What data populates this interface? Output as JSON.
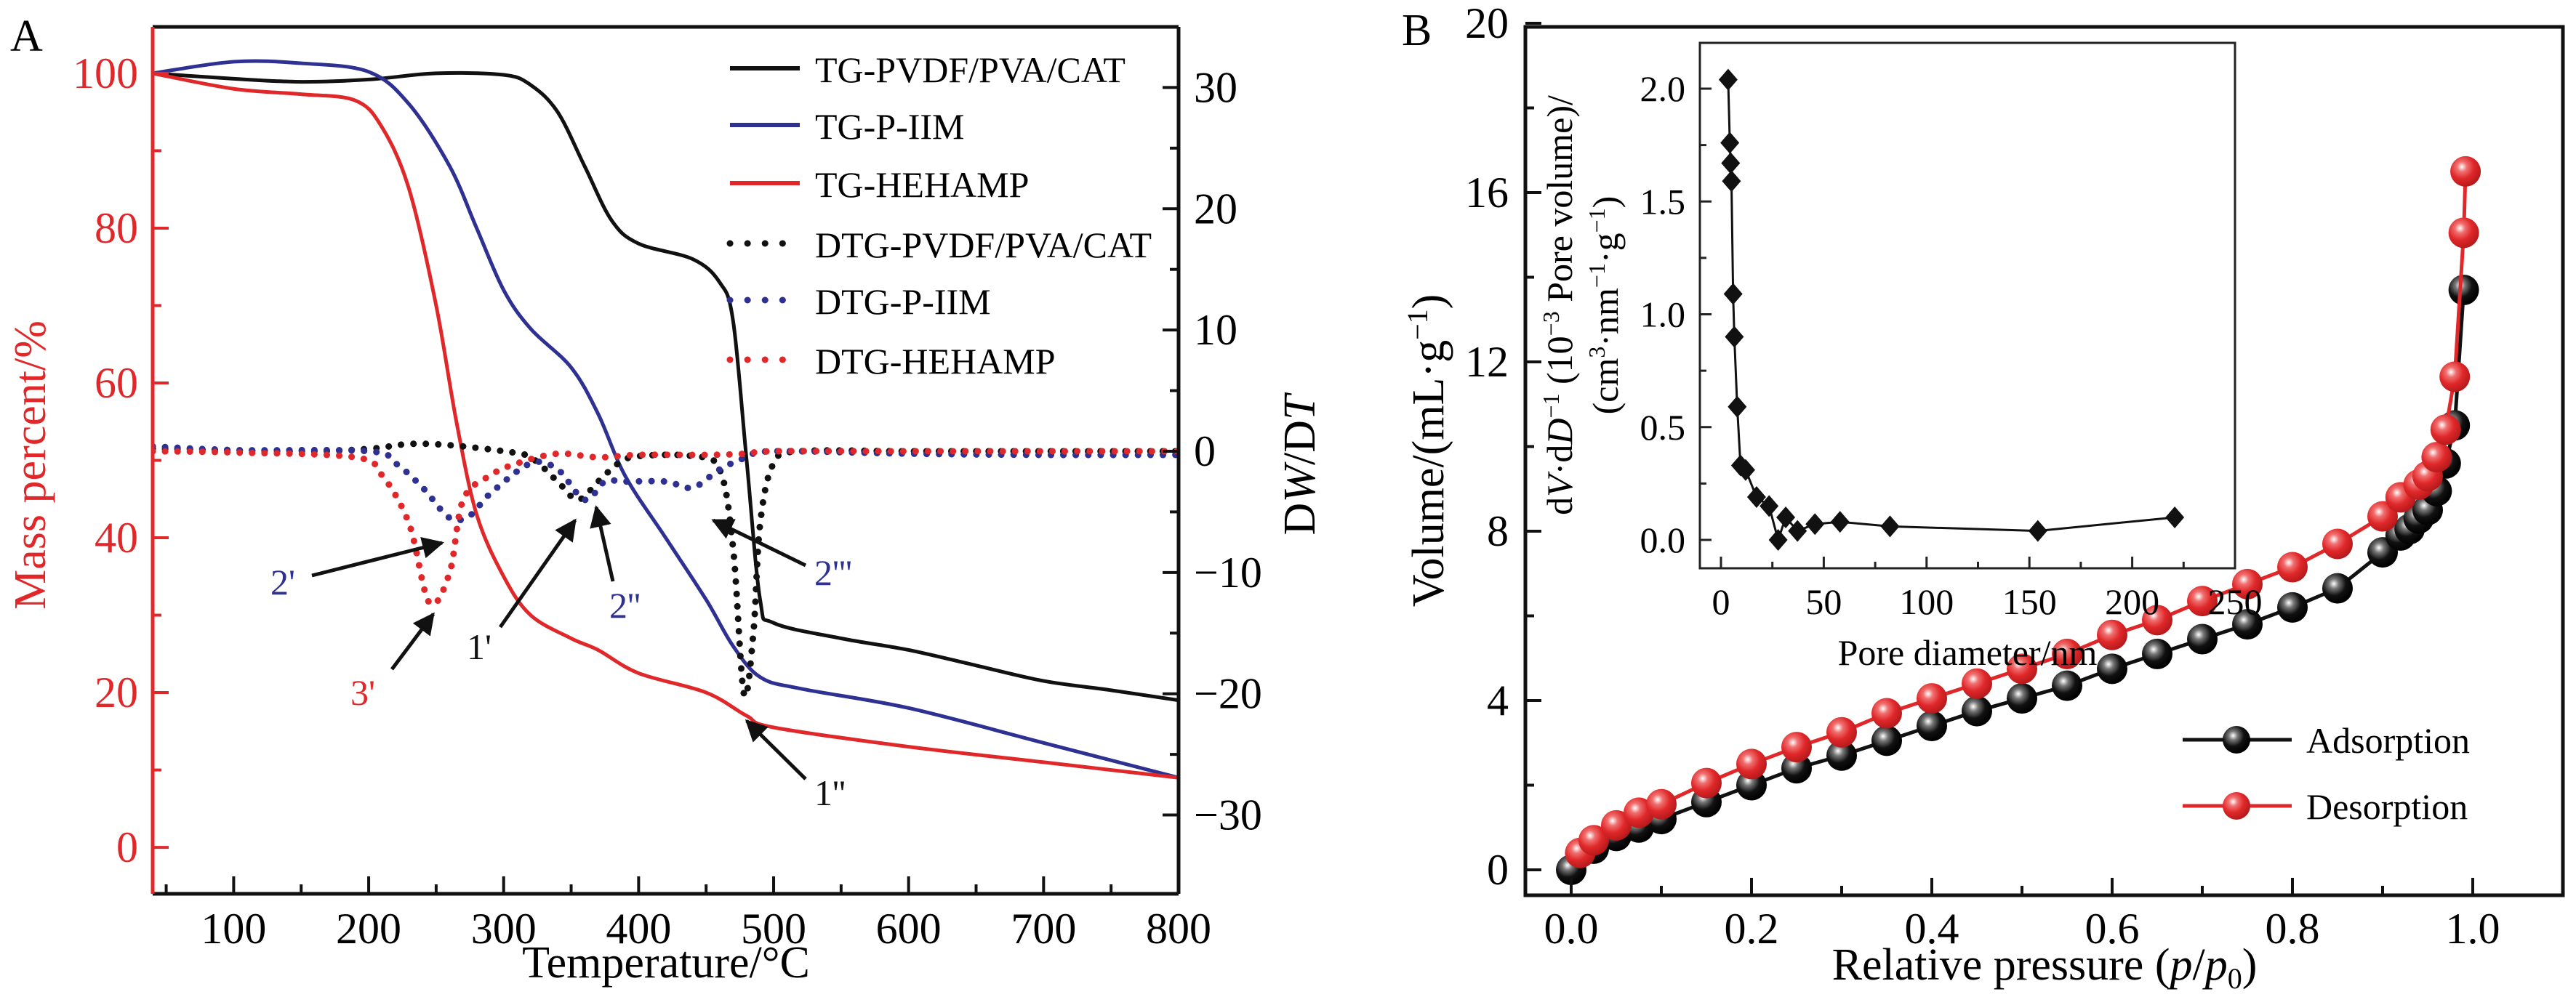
{
  "figure": {
    "panels": [
      "A",
      "B"
    ]
  },
  "colors": {
    "black": "#111111",
    "blue": "#2e3192",
    "red": "#e0282a",
    "axis": "#111111"
  },
  "chart_data": [
    {
      "panel": "A",
      "type": "line",
      "xlabel": "Temperature/°C",
      "ylabel": "Mass percent/%",
      "y2label_parts": [
        "D",
        "W",
        "/D",
        "T"
      ],
      "xlim": [
        40,
        800
      ],
      "ylim": [
        -6,
        106
      ],
      "y2lim": [
        -36.5,
        35
      ],
      "xticks": [
        100,
        200,
        300,
        400,
        500,
        600,
        700,
        800
      ],
      "xtick_labels": [
        "100",
        "200",
        "300",
        "400",
        "500",
        "600",
        "700",
        "800"
      ],
      "yticks": [
        0,
        20,
        40,
        60,
        80,
        100
      ],
      "ytick_labels": [
        "0",
        "20",
        "40",
        "60",
        "80",
        "100"
      ],
      "y2ticks": [
        -30,
        -20,
        -10,
        0,
        10,
        20,
        30
      ],
      "y2tick_labels": [
        "−30",
        "−20",
        "−10",
        "0",
        "10",
        "20",
        "30"
      ],
      "grid": false,
      "legend_position": "top-right",
      "series": [
        {
          "name": "TG-PVDF/PVA/CAT",
          "axis": "left",
          "style": "solid",
          "color": "#111111",
          "x": [
            40,
            100,
            150,
            200,
            250,
            300,
            320,
            340,
            360,
            380,
            400,
            440,
            460,
            470,
            480,
            490,
            500,
            550,
            600,
            650,
            700,
            750,
            800
          ],
          "y": [
            100,
            99.3,
            98.9,
            99.2,
            100,
            99.8,
            98.5,
            95,
            88,
            81,
            78,
            76,
            73,
            68,
            50,
            32,
            29,
            27,
            25.5,
            23.5,
            21.5,
            20.3,
            19
          ]
        },
        {
          "name": "TG-P-IIM",
          "axis": "left",
          "style": "solid",
          "color": "#2e3192",
          "x": [
            40,
            100,
            150,
            200,
            230,
            260,
            280,
            300,
            320,
            350,
            370,
            390,
            420,
            450,
            470,
            490,
            520,
            600,
            700,
            800
          ],
          "y": [
            100,
            101.5,
            101.3,
            100.2,
            96,
            88,
            80,
            72,
            67,
            62,
            56,
            48,
            40,
            32,
            26,
            22,
            20.5,
            18,
            13.5,
            9
          ]
        },
        {
          "name": "TG-HEHAMP",
          "axis": "left",
          "style": "solid",
          "color": "#e0282a",
          "x": [
            40,
            100,
            150,
            190,
            210,
            230,
            250,
            265,
            280,
            300,
            320,
            350,
            370,
            400,
            450,
            480,
            500,
            600,
            700,
            800
          ],
          "y": [
            100,
            98,
            97.3,
            96.5,
            93,
            85,
            70,
            55,
            43,
            35,
            30,
            27,
            25.5,
            22.5,
            20,
            17,
            15.5,
            13,
            11,
            9
          ]
        },
        {
          "name": "DTG-PVDF/PVA/CAT",
          "axis": "right",
          "style": "dotted",
          "color": "#111111",
          "x": [
            40,
            150,
            200,
            230,
            260,
            300,
            320,
            340,
            355,
            370,
            385,
            400,
            440,
            460,
            470,
            478,
            485,
            490,
            500,
            520,
            600,
            700,
            800
          ],
          "y": [
            0.2,
            0,
            0.2,
            0.6,
            0.5,
            0,
            -0.5,
            -2.5,
            -4,
            -2.5,
            -1,
            -0.4,
            -0.4,
            -1.5,
            -8,
            -20,
            -15,
            -6,
            -1,
            0,
            0,
            0,
            0
          ]
        },
        {
          "name": "DTG-P-IIM",
          "axis": "right",
          "style": "dotted",
          "color": "#2e3192",
          "x": [
            40,
            100,
            200,
            220,
            240,
            260,
            275,
            290,
            320,
            340,
            360,
            375,
            390,
            420,
            440,
            460,
            480,
            500,
            600,
            700,
            800
          ],
          "y": [
            0.4,
            0.1,
            0,
            -1,
            -3,
            -5.5,
            -5.3,
            -3.5,
            -1,
            -1.5,
            -4,
            -2.5,
            -2.5,
            -2.5,
            -3,
            -1.5,
            -0.5,
            0,
            -0.2,
            -0.3,
            -0.3
          ]
        },
        {
          "name": "DTG-HEHAMP",
          "axis": "right",
          "style": "dotted",
          "color": "#e0282a",
          "x": [
            40,
            100,
            190,
            210,
            230,
            245,
            260,
            270,
            290,
            310,
            340,
            370,
            400,
            450,
            480,
            500,
            600,
            700,
            800
          ],
          "y": [
            0,
            -0.1,
            -0.5,
            -2,
            -6,
            -12.5,
            -10,
            -4,
            -2,
            -1,
            -0.2,
            -0.5,
            -0.3,
            -0.3,
            -0.2,
            0,
            0,
            0,
            0
          ]
        }
      ],
      "annotations": [
        {
          "label": "2'",
          "color": "#2e3192",
          "target_series": "DTG-P-IIM",
          "target": [
            265,
            -5.5
          ]
        },
        {
          "label": "3'",
          "color": "#e0282a",
          "target_series": "DTG-HEHAMP",
          "target": [
            248,
            -12.5
          ]
        },
        {
          "label": "1'",
          "color": "#111111",
          "target_series": "DTG-PVDF/PVA/CAT",
          "target": [
            355,
            -4
          ]
        },
        {
          "label": "2''",
          "color": "#2e3192",
          "target_series": "DTG-P-IIM",
          "target": [
            362,
            -4
          ]
        },
        {
          "label": "2'''",
          "color": "#2e3192",
          "target_series": "DTG-P-IIM",
          "target": [
            440,
            -3
          ]
        },
        {
          "label": "1''",
          "color": "#111111",
          "target_series": "DTG-PVDF/PVA/CAT",
          "target": [
            478,
            -20
          ]
        }
      ]
    },
    {
      "panel": "B",
      "type": "line",
      "xlabel_parts": [
        "Relative pressure (",
        "p",
        "/",
        "p",
        "0",
        ")"
      ],
      "ylabel_parts": [
        "Volume/(mL·g",
        "−1",
        ")"
      ],
      "xlim": [
        -0.05,
        1.098
      ],
      "ylim": [
        -0.55,
        20.5
      ],
      "xticks": [
        0.0,
        0.2,
        0.4,
        0.6,
        0.8,
        1.0
      ],
      "xtick_labels": [
        "0.0",
        "0.2",
        "0.4",
        "0.6",
        "0.8",
        "1.0"
      ],
      "yticks": [
        0,
        4,
        8,
        12,
        16,
        20
      ],
      "ytick_labels": [
        "0",
        "4",
        "8",
        "12",
        "16",
        "20"
      ],
      "grid": false,
      "legend_position": "bottom-right",
      "series": [
        {
          "name": "Adsorption",
          "color": "#111111",
          "marker": "sphere",
          "x": [
            0.0,
            0.025,
            0.05,
            0.075,
            0.1,
            0.15,
            0.2,
            0.25,
            0.3,
            0.35,
            0.4,
            0.45,
            0.5,
            0.55,
            0.6,
            0.65,
            0.7,
            0.75,
            0.8,
            0.85,
            0.9,
            0.92,
            0.93,
            0.94,
            0.95,
            0.96,
            0.97,
            0.98,
            0.99
          ],
          "y": [
            0.0,
            0.5,
            0.8,
            1.0,
            1.2,
            1.6,
            2.0,
            2.4,
            2.7,
            3.05,
            3.4,
            3.75,
            4.05,
            4.35,
            4.75,
            5.1,
            5.45,
            5.8,
            6.2,
            6.65,
            7.5,
            7.9,
            8.05,
            8.3,
            8.5,
            8.95,
            9.6,
            10.5,
            13.7
          ]
        },
        {
          "name": "Desorption",
          "color": "#e0282a",
          "marker": "sphere",
          "x": [
            0.01,
            0.025,
            0.05,
            0.075,
            0.1,
            0.15,
            0.2,
            0.25,
            0.3,
            0.35,
            0.4,
            0.45,
            0.5,
            0.55,
            0.6,
            0.65,
            0.7,
            0.75,
            0.8,
            0.85,
            0.9,
            0.92,
            0.94,
            0.95,
            0.96,
            0.97,
            0.98,
            0.99,
            0.992
          ],
          "y": [
            0.4,
            0.7,
            1.05,
            1.35,
            1.55,
            2.05,
            2.5,
            2.9,
            3.25,
            3.7,
            4.05,
            4.4,
            4.75,
            5.1,
            5.55,
            5.9,
            6.35,
            6.75,
            7.15,
            7.7,
            8.35,
            8.8,
            9.1,
            9.3,
            9.75,
            10.4,
            11.65,
            15.05,
            16.5
          ]
        }
      ],
      "inset": {
        "type": "line",
        "xlabel": "Pore diameter/nm",
        "ylabel_line1_parts": [
          "d",
          "V",
          "·d",
          "D",
          "−1",
          " (10",
          "−3",
          " Pore volume)/"
        ],
        "ylabel_line2_parts": [
          "(cm",
          "3",
          "·nm",
          "−1",
          "·g",
          "−1",
          ")"
        ],
        "xlim": [
          -10,
          250
        ],
        "ylim": [
          -0.13,
          2.2
        ],
        "xticks": [
          0,
          50,
          100,
          150,
          200,
          250
        ],
        "xtick_labels": [
          "0",
          "50",
          "100",
          "150",
          "200",
          "250"
        ],
        "yticks": [
          0.0,
          0.5,
          1.0,
          1.5,
          2.0
        ],
        "ytick_labels": [
          "0.0",
          "0.5",
          "1.0",
          "1.5",
          "2.0"
        ],
        "marker": "diamond",
        "color": "#111111",
        "x": [
          3.5,
          4.3,
          4.7,
          5.1,
          5.9,
          6.5,
          7.9,
          9.5,
          12,
          17.3,
          23.4,
          27.8,
          31.5,
          37.2,
          45.7,
          57.9,
          82.2,
          154.1,
          220.7
        ],
        "y": [
          2.04,
          1.76,
          1.67,
          1.59,
          1.09,
          0.9,
          0.59,
          0.33,
          0.31,
          0.19,
          0.15,
          0.0,
          0.1,
          0.04,
          0.07,
          0.08,
          0.06,
          0.04,
          0.1
        ]
      }
    }
  ]
}
